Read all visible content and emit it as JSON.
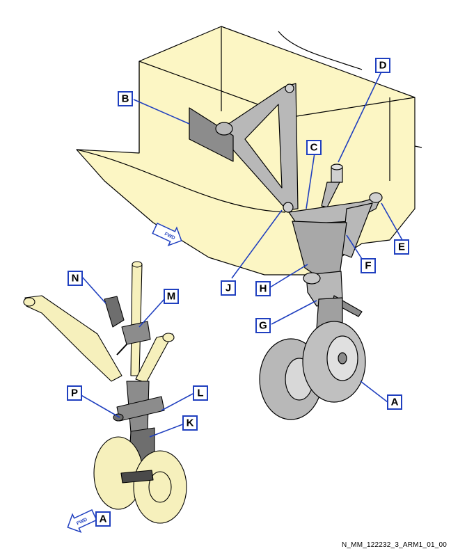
{
  "callouts": {
    "A1": "A",
    "B": "B",
    "C": "C",
    "D": "D",
    "E": "E",
    "F": "F",
    "G": "G",
    "H": "H",
    "J": "J",
    "N": "N",
    "M": "M",
    "P": "P",
    "L": "L",
    "K": "K",
    "A2": "A"
  },
  "fwd_label": "FWD",
  "reference_code": "N_MM_122232_3_ARM1_01_00",
  "colors": {
    "structure_fill": "#fcf6c4",
    "gear_fill": "#b8b8b8",
    "gear_dark": "#6e6e6e",
    "callout_border": "#1f3fbf",
    "ghost_fill": "#f6f0bc"
  }
}
